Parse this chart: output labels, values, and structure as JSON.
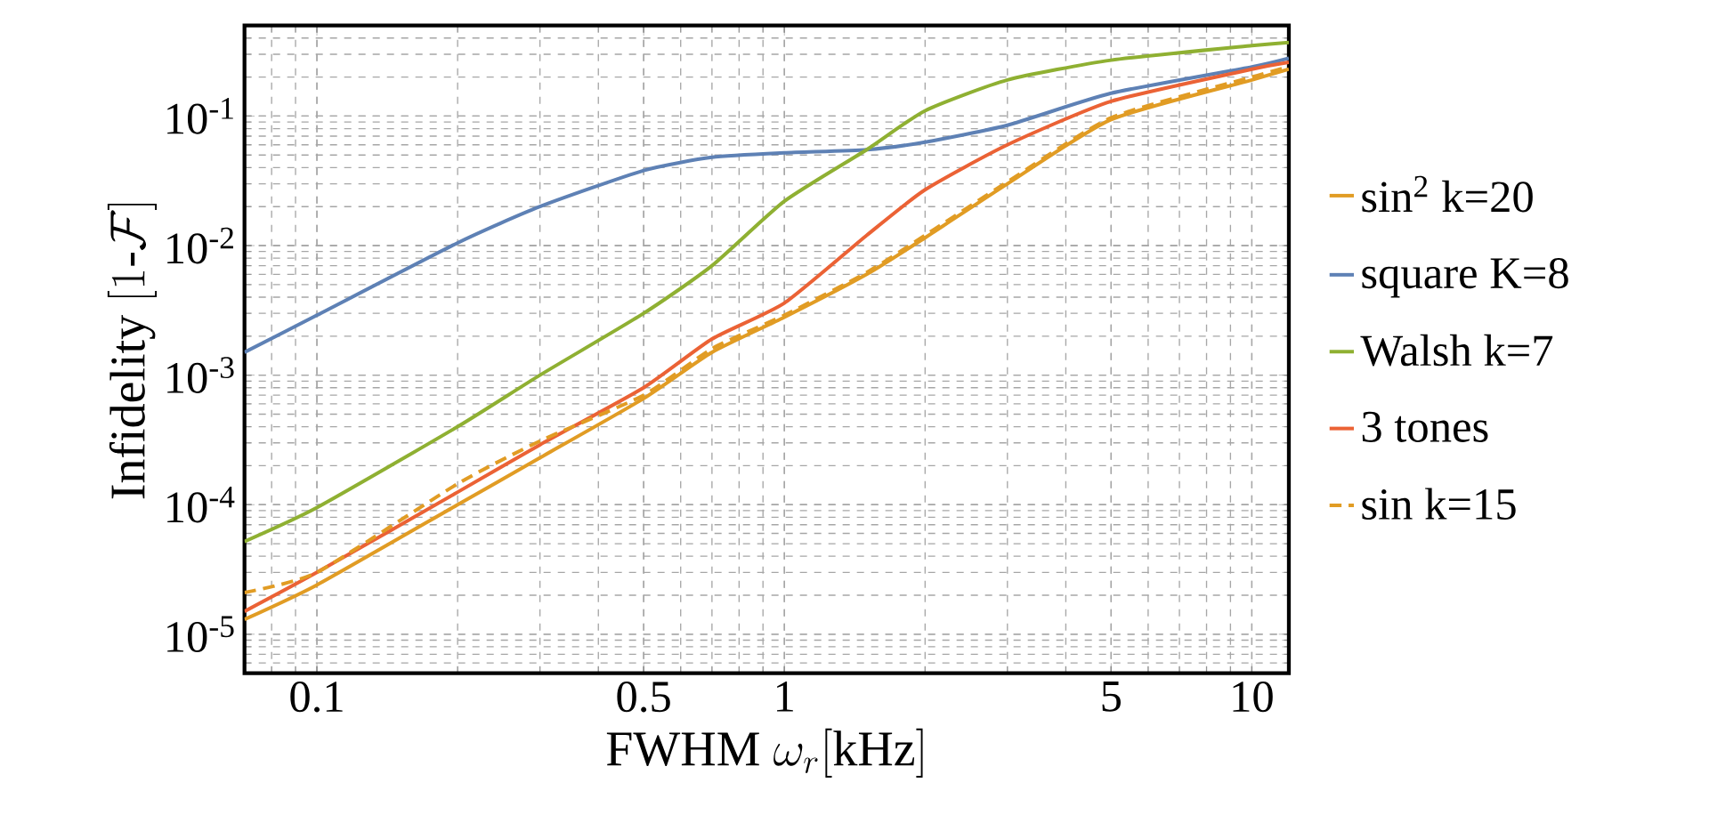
{
  "chart_data": {
    "type": "line",
    "xlabel": "\\mathrm{FWHM}\\ \\omega_r[\\mathrm{kHz}]",
    "ylabel": "\\mathrm{Infidelity}\\ [1\\mbox{-}\\mathcal{F}]",
    "log": "xy",
    "grid": true,
    "legend": "right",
    "line_style": "solid",
    "xlim": [
      0.07,
      12
    ],
    "ylim": [
      5e-06,
      0.5
    ],
    "xticks": [
      0.1,
      0.5,
      1,
      5,
      10
    ],
    "yticks": [
      {
        "value": 1e-05,
        "label": "10$^{-5}$"
      },
      {
        "value": 0.0001,
        "label": "10$^{-4}$"
      },
      {
        "value": 0.001,
        "label": "10$^{-3}$"
      },
      {
        "value": 0.01,
        "label": "10$^{-2}$"
      },
      {
        "value": 0.1,
        "label": "10$^{-1}$"
      }
    ],
    "x": [
      0.07,
      0.1,
      0.2,
      0.3,
      0.5,
      0.7,
      1,
      1.5,
      2,
      3,
      5,
      10,
      12
    ],
    "series": [
      {
        "name": "sin$^{2}$ k=20",
        "color": "#e19c24",
        "values": [
          1.3e-05,
          2.4e-05,
          0.0001,
          0.00023,
          0.00066,
          0.0015,
          0.0028,
          0.006,
          0.0115,
          0.03,
          0.094,
          0.19,
          0.23
        ]
      },
      {
        "name": "square K=8",
        "color": "#5e81b5",
        "values": [
          0.0015,
          0.0029,
          0.0105,
          0.02,
          0.038,
          0.048,
          0.052,
          0.055,
          0.063,
          0.085,
          0.15,
          0.24,
          0.28
        ]
      },
      {
        "name": "Walsh k=7",
        "color": "#8fb032",
        "values": [
          5.2e-05,
          9.5e-05,
          0.0004,
          0.001,
          0.003,
          0.007,
          0.022,
          0.055,
          0.11,
          0.19,
          0.27,
          0.35,
          0.37
        ]
      },
      {
        "name": "3 tones",
        "color": "#eb6235",
        "values": [
          1.5e-05,
          3e-05,
          0.000125,
          0.00029,
          0.0008,
          0.0019,
          0.0036,
          0.012,
          0.027,
          0.06,
          0.13,
          0.23,
          0.26
        ]
      },
      {
        "name": "sin k=15",
        "color": "#e19c24",
        "line_style": "dashed",
        "values": [
          2.1e-05,
          3e-05,
          0.000145,
          0.00031,
          0.0007,
          0.0016,
          0.0029,
          0.0062,
          0.012,
          0.031,
          0.097,
          0.2,
          0.24
        ]
      }
    ]
  }
}
